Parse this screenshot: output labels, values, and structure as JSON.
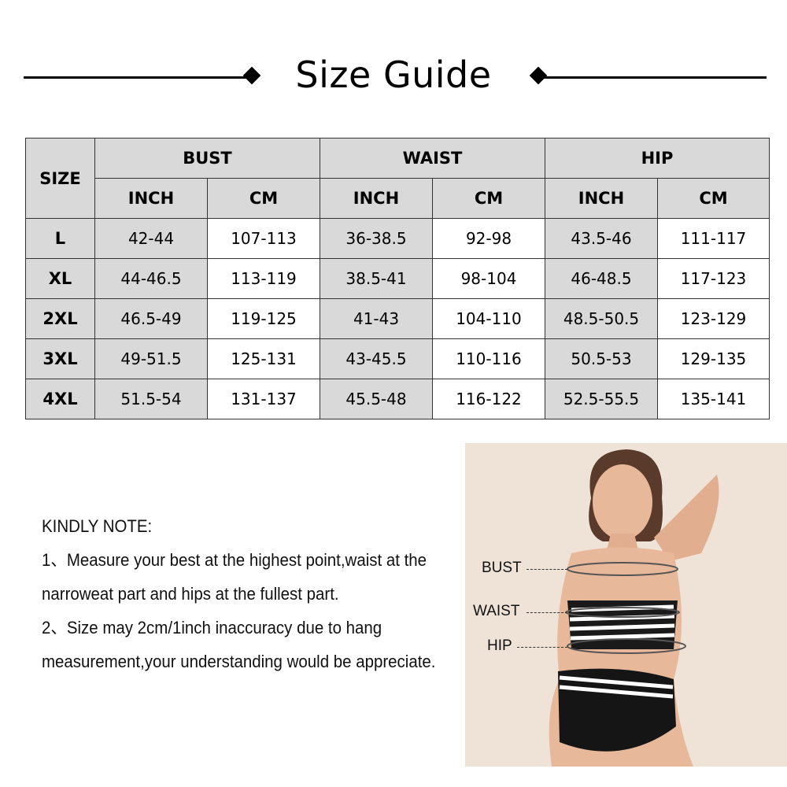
{
  "title": "Size Guide",
  "table": {
    "size_header": "SIZE",
    "groups": [
      "BUST",
      "WAIST",
      "HIP"
    ],
    "units": [
      "INCH",
      "CM",
      "INCH",
      "CM",
      "INCH",
      "CM"
    ],
    "rows": [
      {
        "size": "L",
        "values": [
          "42-44",
          "107-113",
          "36-38.5",
          "92-98",
          "43.5-46",
          "111-117"
        ]
      },
      {
        "size": "XL",
        "values": [
          "44-46.5",
          "113-119",
          "38.5-41",
          "98-104",
          "46-48.5",
          "117-123"
        ]
      },
      {
        "size": "2XL",
        "values": [
          "46.5-49",
          "119-125",
          "41-43",
          "104-110",
          "48.5-50.5",
          "123-129"
        ]
      },
      {
        "size": "3XL",
        "values": [
          "49-51.5",
          "125-131",
          "43-45.5",
          "110-116",
          "50.5-53",
          "129-135"
        ]
      },
      {
        "size": "4XL",
        "values": [
          "51.5-54",
          "131-137",
          "45.5-48",
          "116-122",
          "52.5-55.5",
          "135-141"
        ]
      }
    ]
  },
  "note": {
    "heading": "KINDLY NOTE:",
    "lines": [
      "1、Measure your best at the highest point,waist at the",
      "narroweat part and hips at the fullest part.",
      "2、Size may 2cm/1inch inaccuracy due to hang",
      "measurement,your understanding would be appreciate."
    ]
  },
  "photo": {
    "labels": {
      "bust": "BUST",
      "waist": "WAIST",
      "hip": "HIP"
    }
  },
  "colors": {
    "header_fill": "#d9d9d9",
    "photo_background": "#efe3d8"
  }
}
